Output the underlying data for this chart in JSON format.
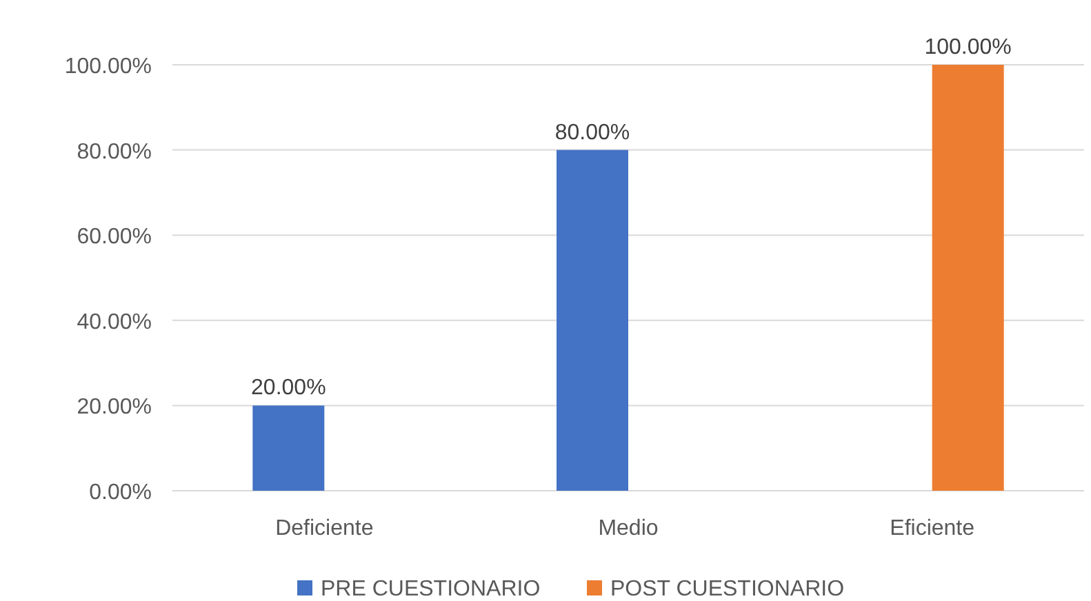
{
  "chart_data": {
    "type": "bar",
    "categories": [
      "Deficiente",
      "Medio",
      "Eficiente"
    ],
    "series": [
      {
        "name": "PRE CUESTIONARIO",
        "color": "#4472c4",
        "values": [
          20,
          80,
          null
        ],
        "value_labels": [
          "20.00%",
          "80.00%",
          null
        ]
      },
      {
        "name": "POST CUESTIONARIO",
        "color": "#ed7d31",
        "values": [
          null,
          null,
          100
        ],
        "value_labels": [
          null,
          null,
          "100.00%"
        ]
      }
    ],
    "ylim": [
      0,
      100
    ],
    "yticks": [
      {
        "value": 0,
        "label": "0.00%"
      },
      {
        "value": 20,
        "label": "20.00%"
      },
      {
        "value": 40,
        "label": "40.00%"
      },
      {
        "value": 60,
        "label": "60.00%"
      },
      {
        "value": 80,
        "label": "80.00%"
      },
      {
        "value": 100,
        "label": "100.00%"
      }
    ],
    "grid": "y",
    "legend": "bottom"
  }
}
